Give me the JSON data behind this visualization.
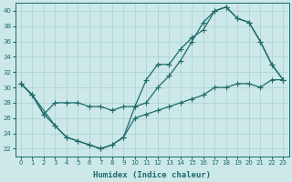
{
  "xlabel": "Humidex (Indice chaleur)",
  "xlim": [
    -0.5,
    23.5
  ],
  "ylim": [
    21,
    41
  ],
  "xticks": [
    0,
    1,
    2,
    3,
    4,
    5,
    6,
    7,
    8,
    9,
    10,
    11,
    12,
    13,
    14,
    15,
    16,
    17,
    18,
    19,
    20,
    21,
    22,
    23
  ],
  "yticks": [
    22,
    24,
    26,
    28,
    30,
    32,
    34,
    36,
    38,
    40
  ],
  "background_color": "#cce8e8",
  "grid_color": "#aad0d0",
  "line_color": "#1e6b6b",
  "line1_x": [
    0,
    1,
    2,
    3,
    4,
    5,
    6,
    7,
    8,
    9,
    10,
    11,
    12,
    13,
    14,
    15,
    16,
    17,
    18,
    19,
    20,
    21,
    22,
    23
  ],
  "line1_y": [
    30.5,
    29,
    26.5,
    28,
    28,
    28,
    27.5,
    27.5,
    27,
    27.5,
    27.5,
    31,
    33,
    33,
    35,
    36.5,
    37.5,
    40,
    40.5,
    39,
    38.5,
    36,
    33,
    31
  ],
  "line2_x": [
    0,
    1,
    3,
    4,
    5,
    6,
    7,
    8,
    9,
    10,
    11,
    12,
    13,
    14,
    15,
    16,
    17,
    18,
    19,
    20,
    21,
    22,
    23
  ],
  "line2_y": [
    30.5,
    29,
    25,
    23.5,
    23,
    22.5,
    22,
    22.5,
    23.5,
    27.5,
    28,
    30,
    31.5,
    33.5,
    36,
    38.5,
    40,
    40.5,
    39,
    38.5,
    36,
    33,
    31
  ],
  "line3_x": [
    0,
    1,
    2,
    3,
    4,
    5,
    6,
    7,
    8,
    9,
    10,
    11,
    12,
    13,
    14,
    15,
    16,
    17,
    18,
    19,
    20,
    21,
    22,
    23
  ],
  "line3_y": [
    30.5,
    29,
    26.5,
    25,
    23.5,
    23,
    22.5,
    22,
    22.5,
    23.5,
    26,
    26.5,
    27,
    27.5,
    28,
    28.5,
    29,
    30,
    30,
    30.5,
    30.5,
    30,
    31,
    31
  ]
}
